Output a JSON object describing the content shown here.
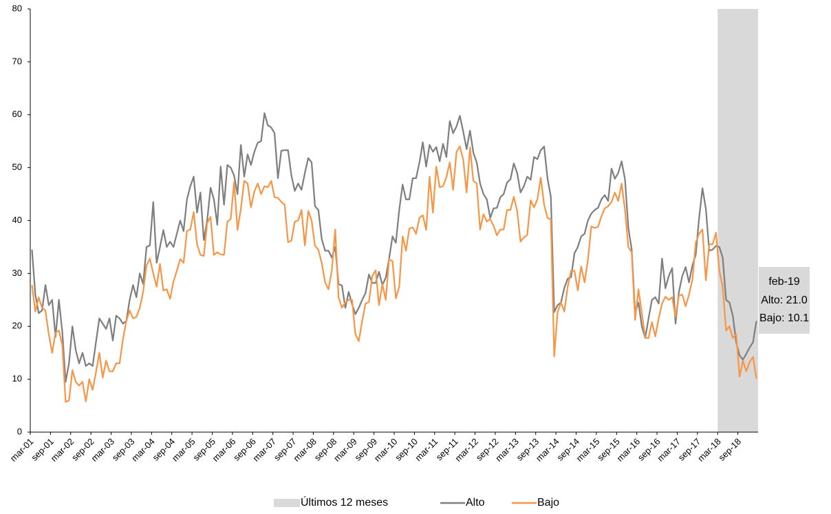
{
  "chart_data": {
    "type": "line",
    "categories": [
      "mar-01",
      null,
      null,
      null,
      null,
      null,
      "sep-01",
      null,
      null,
      null,
      null,
      null,
      "mar-02",
      null,
      null,
      null,
      null,
      null,
      "sep-02",
      null,
      null,
      null,
      null,
      null,
      "mar-03",
      null,
      null,
      null,
      null,
      null,
      "sep-03",
      null,
      null,
      null,
      null,
      null,
      "mar-04",
      null,
      null,
      null,
      null,
      null,
      "sep-04",
      null,
      null,
      null,
      null,
      null,
      "mar-05",
      null,
      null,
      null,
      null,
      null,
      "sep-05",
      null,
      null,
      null,
      null,
      null,
      "mar-06",
      null,
      null,
      null,
      null,
      null,
      "sep-06",
      null,
      null,
      null,
      null,
      null,
      "mar-07",
      null,
      null,
      null,
      null,
      null,
      "sep-07",
      null,
      null,
      null,
      null,
      null,
      "mar-08",
      null,
      null,
      null,
      null,
      null,
      "sep-08",
      null,
      null,
      null,
      null,
      null,
      "mar-09",
      null,
      null,
      null,
      null,
      null,
      "sep-09",
      null,
      null,
      null,
      null,
      null,
      "mar-10",
      null,
      null,
      null,
      null,
      null,
      "sep-10",
      null,
      null,
      null,
      null,
      null,
      "mar-11",
      null,
      null,
      null,
      null,
      null,
      "sep-11",
      null,
      null,
      null,
      null,
      null,
      "mar-12",
      null,
      null,
      null,
      null,
      null,
      "sep-12",
      null,
      null,
      null,
      null,
      null,
      "mar-13",
      null,
      null,
      null,
      null,
      null,
      "sep-13",
      null,
      null,
      null,
      null,
      null,
      "mar-14",
      null,
      null,
      null,
      null,
      null,
      "sep-14",
      null,
      null,
      null,
      null,
      null,
      "mar-15",
      null,
      null,
      null,
      null,
      null,
      "sep-15",
      null,
      null,
      null,
      null,
      null,
      "mar-16",
      null,
      null,
      null,
      null,
      null,
      "sep-16",
      null,
      null,
      null,
      null,
      null,
      "mar-17",
      null,
      null,
      null,
      null,
      null,
      "sep-17",
      null,
      null,
      null,
      null,
      null,
      "mar-18",
      null,
      null,
      null,
      null,
      null,
      "sep-18",
      null,
      null,
      null,
      null,
      null
    ],
    "series": [
      {
        "name": "Alto",
        "color": "#7f7f7f",
        "values": [
          34.5,
          26,
          22.5,
          23,
          27.8,
          24,
          25,
          18,
          25,
          19,
          9.5,
          13,
          20,
          15.5,
          13,
          15,
          12.5,
          13,
          12.5,
          17,
          21.5,
          20.5,
          19.5,
          21.5,
          17.3,
          22,
          21.5,
          20.5,
          21,
          25,
          27.8,
          25.5,
          30,
          28,
          35,
          35.3,
          43.5,
          32,
          35,
          38.2,
          35,
          36,
          35,
          37.5,
          40,
          38,
          44,
          46.5,
          48.3,
          41.5,
          45.3,
          36.3,
          40,
          46.2,
          44,
          39.2,
          50.2,
          43,
          50.5,
          50,
          48.5,
          45,
          54.3,
          48.3,
          52.5,
          50.5,
          53,
          54.7,
          55,
          60.3,
          58,
          57.6,
          56.5,
          48,
          53.2,
          53.3,
          53.3,
          48.5,
          45.6,
          47,
          45.8,
          49,
          51.8,
          51,
          42.7,
          42,
          36.5,
          34.3,
          34.3,
          33,
          35,
          28,
          27.7,
          23.5,
          26.5,
          24.2,
          22.3,
          23.5,
          25,
          26.3,
          29.8,
          28.2,
          28.2,
          30.3,
          27.8,
          29.2,
          32.8,
          37,
          35.8,
          42,
          46.8,
          44,
          44,
          48,
          48,
          51,
          54.8,
          50.2,
          54.3,
          53,
          53.9,
          51.2,
          54.5,
          52,
          58.8,
          56.5,
          57.8,
          59.8,
          56.8,
          53.5,
          57,
          52.8,
          51,
          47,
          45,
          44,
          40.5,
          42.3,
          42.4,
          44.4,
          45,
          47.2,
          47.8,
          50.8,
          49,
          45.3,
          46.5,
          48.3,
          47.7,
          52,
          51.6,
          53.3,
          54,
          48,
          44.5,
          22.7,
          24,
          24.5,
          27.3,
          29,
          29.3,
          33.8,
          35,
          37,
          37.5,
          40,
          41.3,
          42,
          42.4,
          44,
          44.8,
          43.7,
          49.8,
          47.9,
          49,
          51.2,
          47.8,
          38.6,
          34.5,
          22.5,
          24.5,
          20,
          17.8,
          21.5,
          25,
          25.5,
          24.3,
          32.8,
          27.2,
          29.5,
          31,
          20.5,
          26.5,
          29.5,
          31.2,
          28.3,
          31.5,
          33.5,
          40.5,
          46.1,
          42.2,
          34.3,
          34.5,
          35.2,
          35,
          33,
          25,
          24.5,
          22,
          17,
          14.5,
          13.7,
          14.8,
          16,
          17,
          21.0
        ]
      },
      {
        "name": "Bajo",
        "color": "#f79646",
        "values": [
          27.8,
          22.8,
          25.5,
          23.5,
          23,
          18.5,
          15,
          18.8,
          19.2,
          16.5,
          5.7,
          6,
          11.7,
          9.5,
          8.8,
          9.5,
          5.8,
          10,
          8,
          11.3,
          15,
          10.3,
          13.5,
          11.5,
          11.5,
          13,
          13,
          17.5,
          21,
          23,
          21.5,
          21.8,
          23.5,
          26.5,
          31.5,
          32.8,
          30,
          27.5,
          31.8,
          26.8,
          27,
          25.2,
          28.5,
          30.5,
          32.7,
          32,
          38,
          38.3,
          41.6,
          35.5,
          33.5,
          33.3,
          39.5,
          40.7,
          33.5,
          34,
          33.6,
          33.5,
          39.8,
          40.3,
          47.3,
          38.2,
          42.2,
          47.5,
          47,
          42.5,
          45.5,
          47,
          45,
          46.5,
          46.3,
          47.5,
          44.4,
          44.3,
          43.5,
          43,
          35.9,
          36.2,
          39.8,
          40,
          42,
          35.3,
          41.8,
          40,
          35.2,
          34.5,
          32,
          28.3,
          27,
          30.6,
          38.3,
          25.5,
          23.5,
          24.5,
          25,
          25,
          18.5,
          17.2,
          21,
          24.3,
          24.6,
          29.5,
          30.6,
          24,
          28,
          25,
          32.7,
          32.3,
          25.3,
          27.5,
          37,
          34.3,
          38.5,
          38.7,
          37.5,
          40.5,
          41,
          38.2,
          48.3,
          41.5,
          50.2,
          46.3,
          46.5,
          48.2,
          51,
          45.8,
          53,
          54,
          51.5,
          45.3,
          53.8,
          47.5,
          47,
          38.3,
          41.2,
          39.8,
          40.3,
          39,
          37.2,
          38.3,
          38.3,
          42,
          42,
          44.5,
          41.8,
          36,
          36.8,
          37.3,
          43.8,
          42.5,
          44,
          48.1,
          43,
          40.5,
          40.2,
          14.3,
          22.7,
          24.5,
          22.8,
          27.5,
          30.5,
          30.5,
          26.8,
          31.3,
          28.3,
          32.5,
          38.9,
          38.6,
          38.8,
          40.8,
          42.3,
          42.7,
          43.5,
          45.3,
          43.7,
          47,
          42,
          35,
          34,
          21.2,
          27,
          22.5,
          17.8,
          17.8,
          20.8,
          18.1,
          21.5,
          24.3,
          25.6,
          25,
          25.5,
          21.8,
          25.8,
          26,
          23.8,
          26,
          28.8,
          35.8,
          37.5,
          38.3,
          28.7,
          35.5,
          35.5,
          37.7,
          30.5,
          27.5,
          19.2,
          20,
          17.8,
          18.5,
          10.5,
          13.5,
          11.5,
          13.3,
          14.2,
          10.1
        ]
      }
    ],
    "highlight": {
      "name": "Últimos 12 meses",
      "color": "#d9d9d9",
      "from": "mar-18"
    },
    "annotation": {
      "title": "feb-19",
      "lines": [
        "Alto: 21.0",
        "Bajo: 10.1"
      ]
    },
    "ylim": [
      0,
      80
    ],
    "yticks": [
      0,
      10,
      20,
      30,
      40,
      50,
      60,
      70,
      80
    ],
    "grid": false,
    "legend": "bottom"
  }
}
